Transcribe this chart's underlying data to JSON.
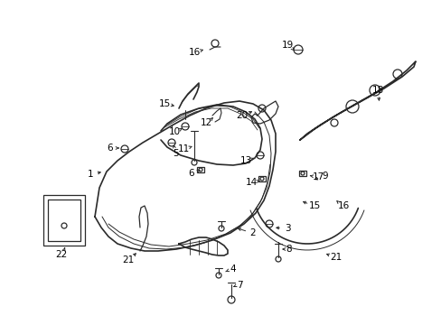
{
  "background_color": "#ffffff",
  "line_color": "#2a2a2a",
  "text_color": "#000000",
  "fig_width": 4.89,
  "fig_height": 3.6,
  "dpi": 100,
  "font_size": 7.5
}
